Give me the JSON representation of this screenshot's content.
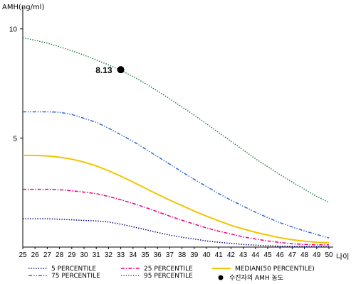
{
  "chart_data": {
    "type": "line",
    "ylabel": "AMH(ng/ml)",
    "xlabel": "나이",
    "x": [
      25,
      26,
      27,
      28,
      29,
      30,
      31,
      32,
      33,
      34,
      35,
      36,
      37,
      38,
      39,
      40,
      41,
      42,
      43,
      44,
      45,
      46,
      47,
      48,
      49,
      50
    ],
    "xlim": [
      25,
      50
    ],
    "ylim": [
      0,
      11
    ],
    "yticks": [
      5,
      10
    ],
    "grid": false,
    "legend_position": "bottom",
    "series": [
      {
        "name": "5 PERCENTILE",
        "color": "#000080",
        "dash": "dotted",
        "values": [
          1.3,
          1.3,
          1.3,
          1.28,
          1.25,
          1.22,
          1.2,
          1.15,
          1.05,
          0.93,
          0.8,
          0.67,
          0.55,
          0.45,
          0.37,
          0.28,
          0.22,
          0.17,
          0.12,
          0.09,
          0.06,
          0.04,
          0.03,
          0.02,
          0.02,
          0.02
        ]
      },
      {
        "name": "25 PERCENTILE",
        "color": "#e6007e",
        "dash": "dashdot",
        "values": [
          2.65,
          2.65,
          2.65,
          2.63,
          2.58,
          2.52,
          2.45,
          2.32,
          2.17,
          2.0,
          1.82,
          1.62,
          1.42,
          1.23,
          1.05,
          0.88,
          0.73,
          0.6,
          0.47,
          0.37,
          0.28,
          0.21,
          0.15,
          0.12,
          0.1,
          0.1
        ]
      },
      {
        "name": "MEDIAN(50 PERCENTILE)",
        "color": "#f2c400",
        "dash": "solid",
        "values": [
          4.2,
          4.2,
          4.18,
          4.12,
          4.03,
          3.9,
          3.72,
          3.5,
          3.25,
          2.98,
          2.7,
          2.42,
          2.15,
          1.9,
          1.65,
          1.42,
          1.2,
          1.0,
          0.83,
          0.68,
          0.55,
          0.43,
          0.34,
          0.27,
          0.22,
          0.2
        ]
      },
      {
        "name": "75 PERCENTILE",
        "color": "#3366cc",
        "dash": "dashdotdot",
        "values": [
          6.2,
          6.2,
          6.2,
          6.18,
          6.08,
          5.9,
          5.72,
          5.45,
          5.15,
          4.85,
          4.5,
          4.15,
          3.8,
          3.45,
          3.1,
          2.78,
          2.45,
          2.15,
          1.87,
          1.6,
          1.35,
          1.12,
          0.92,
          0.74,
          0.58,
          0.42
        ]
      },
      {
        "name": "95 PERCENTILE",
        "color": "#1a7a3e",
        "dash": "dotted",
        "values": [
          9.6,
          9.48,
          9.35,
          9.18,
          9.0,
          8.8,
          8.58,
          8.35,
          8.1,
          7.82,
          7.5,
          7.15,
          6.8,
          6.42,
          6.05,
          5.65,
          5.25,
          4.85,
          4.45,
          4.05,
          3.68,
          3.32,
          2.98,
          2.65,
          2.32,
          2.05
        ]
      }
    ],
    "marker": {
      "name": "수진자의 AMH 농도",
      "x": 33,
      "y": 8.13,
      "label": "8.13"
    }
  }
}
